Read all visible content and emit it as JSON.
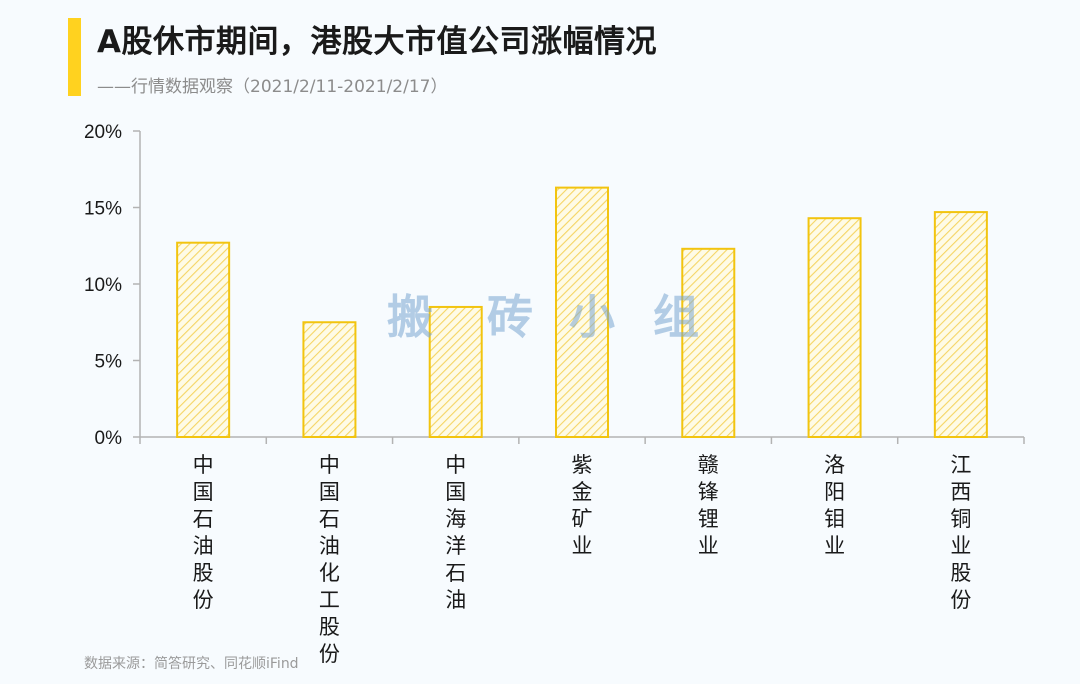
{
  "header": {
    "title": "A股休市期间，港股大市值公司涨幅情况",
    "subtitle": "——行情数据观察（2021/2/11-2021/2/17）"
  },
  "footer": {
    "source": "数据来源：简答研究、同花顺iFind"
  },
  "watermark": {
    "chars": [
      "搬",
      "砖",
      "小",
      "组"
    ]
  },
  "colors": {
    "accent": "#ffd21f",
    "bar_stroke": "#f2c40f",
    "bar_hatch": "#f5d564",
    "axis": "#b3b3b3"
  },
  "chart_data": {
    "type": "bar",
    "categories": [
      "中国石油股份",
      "中国石油化工股份",
      "中国海洋石油",
      "紫金矿业",
      "赣锋锂业",
      "洛阳钼业",
      "江西铜业股份"
    ],
    "values": [
      12.7,
      7.5,
      8.5,
      16.3,
      12.3,
      14.3,
      14.7
    ],
    "ylim": [
      0,
      20
    ],
    "yticks": [
      0,
      5,
      10,
      15,
      20
    ],
    "yticklabels": [
      "0%",
      "5%",
      "10%",
      "15%",
      "20%"
    ],
    "grid": false,
    "legend": "none"
  }
}
